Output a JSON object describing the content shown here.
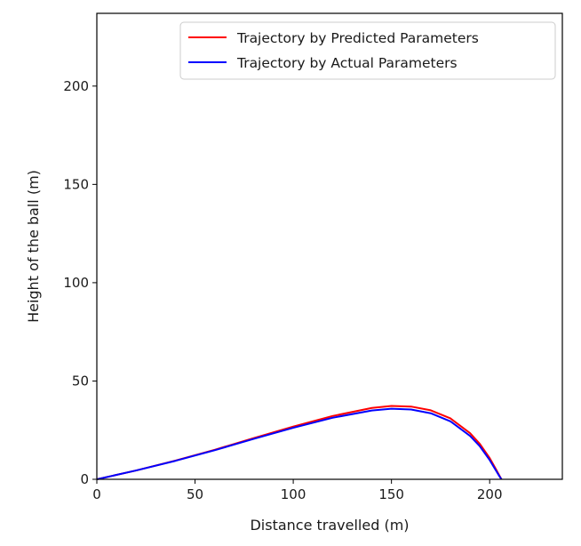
{
  "chart_data": {
    "type": "line",
    "title": "",
    "xlabel": "Distance travelled (m)",
    "ylabel": "Height of the ball (m)",
    "xlim": [
      0,
      237
    ],
    "ylim": [
      0,
      237
    ],
    "xticks": [
      0,
      50,
      100,
      150,
      200
    ],
    "yticks": [
      0,
      50,
      100,
      150,
      200
    ],
    "grid": false,
    "legend_position": "top-right",
    "series": [
      {
        "name": "Trajectory by Predicted Parameters",
        "color": "#ff0000",
        "x": [
          0,
          20,
          40,
          60,
          80,
          100,
          120,
          140,
          150,
          160,
          170,
          180,
          190,
          195,
          200,
          203,
          205,
          206
        ],
        "y": [
          0,
          4.5,
          9.5,
          15.0,
          21.0,
          26.8,
          32.2,
          36.3,
          37.3,
          37.0,
          35.1,
          31.0,
          23.5,
          18.0,
          10.8,
          5.5,
          1.8,
          0
        ]
      },
      {
        "name": "Trajectory by Actual Parameters",
        "color": "#0000ff",
        "x": [
          0,
          20,
          40,
          60,
          80,
          100,
          120,
          140,
          150,
          160,
          170,
          180,
          190,
          195,
          200,
          203,
          205,
          206
        ],
        "y": [
          0,
          4.5,
          9.4,
          14.8,
          20.6,
          26.2,
          31.3,
          35.0,
          35.9,
          35.5,
          33.6,
          29.5,
          22.1,
          16.8,
          9.8,
          4.8,
          1.5,
          0
        ]
      }
    ]
  }
}
